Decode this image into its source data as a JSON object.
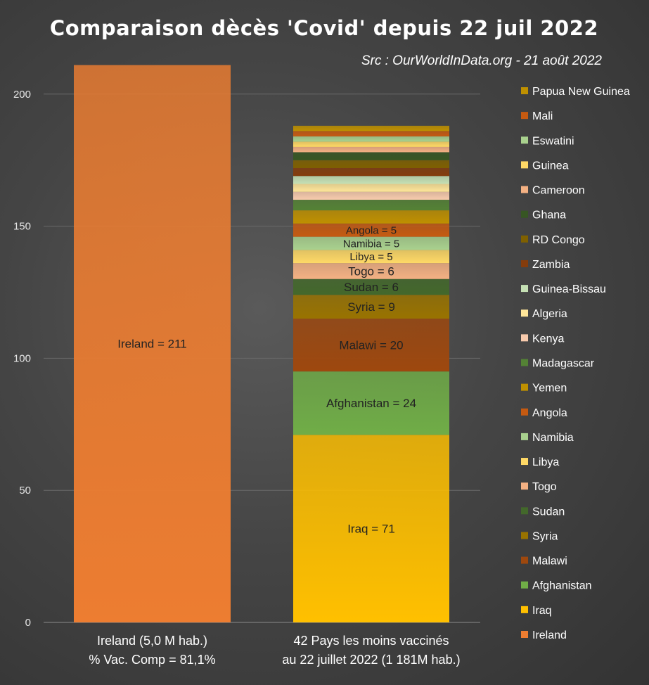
{
  "chart_data": {
    "type": "bar",
    "stacked": true,
    "title": "Comparaison dècès 'Covid' depuis 22 juil 2022",
    "subtitle": "Src : OurWorldInData.org - 21 août 2022",
    "categories": [
      [
        "Ireland (5,0 M hab.)",
        "% Vac. Comp = 81,1%"
      ],
      [
        "42 Pays les moins vaccinés",
        "au 22 juillet 2022 (1 181M hab.)"
      ]
    ],
    "ylim": [
      0,
      215
    ],
    "yticks": [
      0,
      50,
      100,
      150,
      200
    ],
    "grid": true,
    "legend_position": "right",
    "series": [
      {
        "name": "Ireland",
        "color": "#ED7D31",
        "category_index": 0,
        "value": 211,
        "label": "Ireland = 211"
      },
      {
        "name": "Iraq",
        "color": "#FFC000",
        "category_index": 1,
        "value": 71,
        "label": "Iraq = 71"
      },
      {
        "name": "Afghanistan",
        "color": "#70AD47",
        "category_index": 1,
        "value": 24,
        "label": "Afghanistan = 24"
      },
      {
        "name": "Malawi",
        "color": "#9E480E",
        "category_index": 1,
        "value": 20,
        "label": "Malawi = 20"
      },
      {
        "name": "Syria",
        "color": "#997300",
        "category_index": 1,
        "value": 9,
        "label": "Syria = 9"
      },
      {
        "name": "Sudan",
        "color": "#43682B",
        "category_index": 1,
        "value": 6,
        "label": "Sudan = 6"
      },
      {
        "name": "Togo",
        "color": "#F4B183",
        "category_index": 1,
        "value": 6,
        "label": "Togo = 6"
      },
      {
        "name": "Libya",
        "color": "#FFD966",
        "category_index": 1,
        "value": 5,
        "label": "Libya = 5"
      },
      {
        "name": "Namibia",
        "color": "#A9D18E",
        "category_index": 1,
        "value": 5,
        "label": "Namibia = 5"
      },
      {
        "name": "Angola",
        "color": "#C55A11",
        "category_index": 1,
        "value": 5,
        "label": "Angola = 5"
      },
      {
        "name": "Yemen",
        "color": "#BF9000",
        "category_index": 1,
        "value": 5,
        "label": ""
      },
      {
        "name": "Madagascar",
        "color": "#548235",
        "category_index": 1,
        "value": 4,
        "label": ""
      },
      {
        "name": "Kenya",
        "color": "#F8CBAD",
        "category_index": 1,
        "value": 3,
        "label": ""
      },
      {
        "name": "Algeria",
        "color": "#FFE699",
        "category_index": 1,
        "value": 3,
        "label": ""
      },
      {
        "name": "Guinea-Bissau",
        "color": "#C5E0B4",
        "category_index": 1,
        "value": 3,
        "label": ""
      },
      {
        "name": "Zambia",
        "color": "#843C0C",
        "category_index": 1,
        "value": 3,
        "label": ""
      },
      {
        "name": "RD Congo",
        "color": "#7F6000",
        "category_index": 1,
        "value": 3,
        "label": ""
      },
      {
        "name": "Ghana",
        "color": "#375623",
        "category_index": 1,
        "value": 3,
        "label": ""
      },
      {
        "name": "Cameroon",
        "color": "#F4B183",
        "category_index": 1,
        "value": 2,
        "label": ""
      },
      {
        "name": "Guinea",
        "color": "#FFD966",
        "category_index": 1,
        "value": 2,
        "label": ""
      },
      {
        "name": "Eswatini",
        "color": "#A9D18E",
        "category_index": 1,
        "value": 2,
        "label": ""
      },
      {
        "name": "Mali",
        "color": "#C55A11",
        "category_index": 1,
        "value": 2,
        "label": ""
      },
      {
        "name": "Papua New Guinea",
        "color": "#BF9000",
        "category_index": 1,
        "value": 2,
        "label": ""
      }
    ],
    "legend_order": [
      "Papua New Guinea",
      "Mali",
      "Eswatini",
      "Guinea",
      "Cameroon",
      "Ghana",
      "RD Congo",
      "Zambia",
      "Guinea-Bissau",
      "Algeria",
      "Kenya",
      "Madagascar",
      "Yemen",
      "Angola",
      "Namibia",
      "Libya",
      "Togo",
      "Sudan",
      "Syria",
      "Malawi",
      "Afghanistan",
      "Iraq",
      "Ireland"
    ]
  }
}
